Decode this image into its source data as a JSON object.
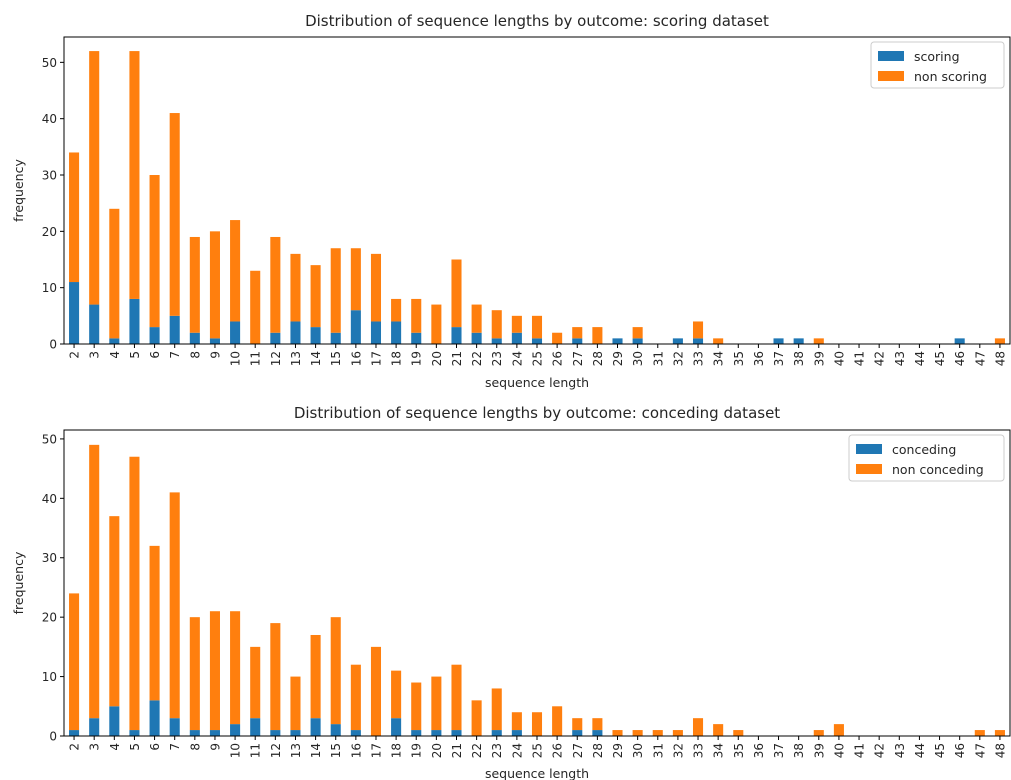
{
  "colors": {
    "series_a": "#1f77b4",
    "series_b": "#ff7f0e"
  },
  "chart_data": [
    {
      "type": "bar",
      "stacked": true,
      "title": "Distribution of sequence lengths by outcome: scoring dataset",
      "xlabel": "sequence length",
      "ylabel": "frequency",
      "ylim": [
        0,
        54.5
      ],
      "yticks": [
        0,
        10,
        20,
        30,
        40,
        50
      ],
      "legend_position": "top-right",
      "categories": [
        "2",
        "3",
        "4",
        "5",
        "6",
        "7",
        "8",
        "9",
        "10",
        "11",
        "12",
        "13",
        "14",
        "15",
        "16",
        "17",
        "18",
        "19",
        "20",
        "21",
        "22",
        "23",
        "24",
        "25",
        "26",
        "27",
        "28",
        "29",
        "30",
        "31",
        "32",
        "33",
        "34",
        "35",
        "36",
        "37",
        "38",
        "39",
        "40",
        "41",
        "42",
        "43",
        "44",
        "45",
        "46",
        "47",
        "48"
      ],
      "series": [
        {
          "name": "scoring",
          "values": [
            11,
            7,
            1,
            8,
            3,
            5,
            2,
            1,
            4,
            0,
            2,
            4,
            3,
            2,
            6,
            4,
            4,
            2,
            0,
            3,
            2,
            1,
            2,
            1,
            0,
            1,
            0,
            1,
            1,
            0,
            1,
            1,
            0,
            0,
            0,
            1,
            1,
            0,
            0,
            0,
            0,
            0,
            0,
            0,
            1,
            0,
            0
          ]
        },
        {
          "name": "non scoring",
          "values": [
            23,
            45,
            23,
            44,
            27,
            36,
            17,
            19,
            18,
            13,
            17,
            12,
            11,
            15,
            11,
            12,
            4,
            6,
            7,
            12,
            5,
            5,
            3,
            4,
            2,
            2,
            3,
            0,
            2,
            0,
            0,
            3,
            1,
            0,
            0,
            0,
            0,
            1,
            0,
            0,
            0,
            0,
            0,
            0,
            0,
            0,
            1
          ]
        }
      ]
    },
    {
      "type": "bar",
      "stacked": true,
      "title": "Distribution of sequence lengths by outcome: conceding dataset",
      "xlabel": "sequence length",
      "ylabel": "frequency",
      "ylim": [
        0,
        51.5
      ],
      "yticks": [
        0,
        10,
        20,
        30,
        40,
        50
      ],
      "legend_position": "top-right",
      "categories": [
        "2",
        "3",
        "4",
        "5",
        "6",
        "7",
        "8",
        "9",
        "10",
        "11",
        "12",
        "13",
        "14",
        "15",
        "16",
        "17",
        "18",
        "19",
        "20",
        "21",
        "22",
        "23",
        "24",
        "25",
        "26",
        "27",
        "28",
        "29",
        "30",
        "31",
        "32",
        "33",
        "34",
        "35",
        "36",
        "37",
        "38",
        "39",
        "40",
        "41",
        "42",
        "43",
        "44",
        "45",
        "46",
        "47",
        "48"
      ],
      "series": [
        {
          "name": "conceding",
          "values": [
            1,
            3,
            5,
            1,
            6,
            3,
            1,
            1,
            2,
            3,
            1,
            1,
            3,
            2,
            1,
            0,
            3,
            1,
            1,
            1,
            0,
            1,
            1,
            0,
            0,
            1,
            1,
            0,
            0,
            0,
            0,
            0,
            0,
            0,
            0,
            0,
            0,
            0,
            0,
            0,
            0,
            0,
            0,
            0,
            0,
            0,
            0
          ]
        },
        {
          "name": "non conceding",
          "values": [
            23,
            46,
            32,
            46,
            26,
            38,
            19,
            20,
            19,
            12,
            18,
            9,
            14,
            18,
            11,
            15,
            8,
            8,
            9,
            11,
            6,
            7,
            3,
            4,
            5,
            2,
            2,
            1,
            1,
            1,
            1,
            3,
            2,
            1,
            0,
            0,
            0,
            1,
            2,
            0,
            0,
            0,
            0,
            0,
            0,
            1,
            1
          ]
        }
      ]
    }
  ]
}
